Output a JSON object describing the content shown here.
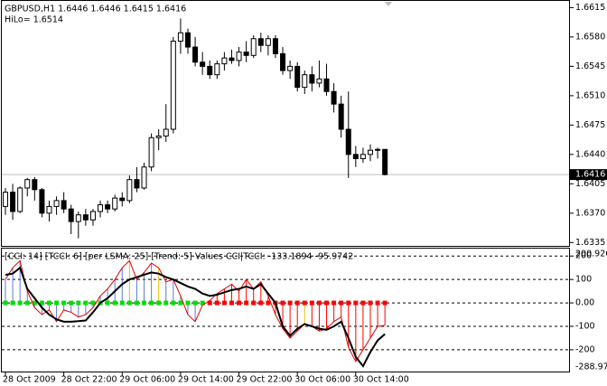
{
  "chart_data": [
    {
      "type": "candlestick",
      "title": "GBPUSD,H1  1.6446 1.6446 1.6415 1.6416",
      "annotation": "HiLo= 1.6514",
      "categories": [
        "28 Oct 2009",
        null,
        null,
        null,
        null,
        null,
        null,
        null,
        "28 Oct 22:00",
        null,
        null,
        null,
        null,
        null,
        null,
        null,
        "29 Oct 06:00",
        null,
        null,
        null,
        null,
        null,
        null,
        null,
        "29 Oct 14:00",
        null,
        null,
        null,
        null,
        null,
        null,
        null,
        "29 Oct 22:00",
        null,
        null,
        null,
        null,
        null,
        null,
        null,
        "30 Oct 06:00",
        null,
        null,
        null,
        null,
        null,
        null,
        null,
        "30 Oct 14:00",
        null,
        null,
        null,
        null
      ],
      "open": [
        1.6378,
        1.6395,
        1.6372,
        1.64,
        1.641,
        1.6398,
        1.637,
        1.6378,
        1.6385,
        1.6375,
        1.636,
        1.6368,
        1.6362,
        1.6372,
        1.638,
        1.6375,
        1.6388,
        1.6385,
        1.641,
        1.64,
        1.6425,
        1.646,
        1.6462,
        1.647,
        1.6575,
        1.6585,
        1.6568,
        1.655,
        1.6545,
        1.6535,
        1.6548,
        1.6555,
        1.6552,
        1.6562,
        1.6558,
        1.6578,
        1.657,
        1.6578,
        1.656,
        1.654,
        1.6545,
        1.652,
        1.6535,
        1.6525,
        1.653,
        1.6515,
        1.65,
        1.647,
        1.644,
        1.6435,
        1.644,
        1.6445,
        1.6446
      ],
      "high": [
        1.64,
        1.6405,
        1.6402,
        1.6412,
        1.6413,
        1.64,
        1.6385,
        1.639,
        1.6395,
        1.638,
        1.6372,
        1.6375,
        1.6375,
        1.6385,
        1.6385,
        1.6392,
        1.6395,
        1.6415,
        1.6425,
        1.643,
        1.6465,
        1.647,
        1.65,
        1.658,
        1.6602,
        1.659,
        1.658,
        1.6562,
        1.6552,
        1.6552,
        1.6562,
        1.6565,
        1.6568,
        1.6575,
        1.6582,
        1.6585,
        1.6582,
        1.6582,
        1.6568,
        1.6552,
        1.655,
        1.654,
        1.6545,
        1.6552,
        1.6548,
        1.6525,
        1.651,
        1.6515,
        1.645,
        1.6448,
        1.6452,
        1.6448,
        1.6446
      ],
      "low": [
        1.6368,
        1.6362,
        1.637,
        1.639,
        1.6385,
        1.6365,
        1.636,
        1.6368,
        1.637,
        1.6345,
        1.634,
        1.6355,
        1.6355,
        1.6365,
        1.637,
        1.6372,
        1.6378,
        1.6382,
        1.6395,
        1.6398,
        1.642,
        1.6445,
        1.6455,
        1.6465,
        1.656,
        1.656,
        1.6545,
        1.6535,
        1.653,
        1.653,
        1.654,
        1.6548,
        1.6545,
        1.655,
        1.6555,
        1.6562,
        1.6558,
        1.6555,
        1.6535,
        1.653,
        1.6515,
        1.6512,
        1.6515,
        1.652,
        1.651,
        1.649,
        1.646,
        1.6412,
        1.6425,
        1.643,
        1.6432,
        1.6435,
        1.6415
      ],
      "close": [
        1.6395,
        1.6372,
        1.64,
        1.641,
        1.6398,
        1.637,
        1.6378,
        1.6385,
        1.6375,
        1.636,
        1.6368,
        1.6362,
        1.6372,
        1.638,
        1.6375,
        1.6388,
        1.6385,
        1.641,
        1.64,
        1.6425,
        1.646,
        1.6462,
        1.647,
        1.6575,
        1.6585,
        1.6568,
        1.655,
        1.6545,
        1.6535,
        1.6548,
        1.6555,
        1.6552,
        1.6562,
        1.6558,
        1.6578,
        1.657,
        1.6578,
        1.656,
        1.654,
        1.6545,
        1.652,
        1.6535,
        1.6525,
        1.653,
        1.6515,
        1.65,
        1.647,
        1.644,
        1.6435,
        1.644,
        1.6445,
        1.6446,
        1.6416
      ],
      "up_color": "#ffffff",
      "down_color": "#000000",
      "ylim": [
        1.6331,
        1.6623
      ],
      "yticks": [
        1.6615,
        {
          "value": 1.658,
          "label": "1.6580"
        },
        1.6545,
        {
          "value": 1.651,
          "label": "1.6510"
        },
        1.6475,
        {
          "value": 1.644,
          "label": "1.6440"
        },
        1.6405,
        {
          "value": 1.637,
          "label": "1.6370"
        },
        1.6335
      ],
      "current_price": 1.6416
    },
    {
      "type": "indicator",
      "title": "[CCI: 14] [TCCI: 6] [per LSMA: 25] [Trend: 5] Values CCI|TCCI: -133.1894 -95.9742",
      "series": [
        {
          "color": "#e00000",
          "width": 1,
          "values": [
            100,
            150,
            180,
            50,
            -20,
            -50,
            -30,
            -80,
            -30,
            -40,
            -60,
            -50,
            -20,
            30,
            60,
            100,
            150,
            180,
            100,
            130,
            170,
            150,
            90,
            100,
            30,
            -50,
            -80,
            -10,
            10,
            40,
            60,
            80,
            50,
            100,
            60,
            90,
            30,
            -50,
            -110,
            -150,
            -120,
            -90,
            -100,
            -120,
            -110,
            -80,
            -60,
            -190,
            -250,
            -200,
            -150,
            -100,
            -96
          ]
        },
        {
          "color": "#000000",
          "width": 2,
          "values": [
            120,
            125,
            150,
            60,
            20,
            -20,
            -50,
            -70,
            -80,
            -80,
            -78,
            -75,
            -40,
            0,
            20,
            50,
            80,
            100,
            110,
            120,
            130,
            125,
            110,
            100,
            85,
            70,
            60,
            40,
            30,
            35,
            45,
            55,
            60,
            70,
            60,
            80,
            40,
            0,
            -100,
            -140,
            -110,
            -90,
            -100,
            -110,
            -115,
            -100,
            -80,
            -150,
            -230,
            -270,
            -210,
            -160,
            -133
          ]
        }
      ],
      "histogram_colors": [
        "#5b7bd5",
        "#5b7bd5",
        "#5b7bd5",
        "#5b7bd5",
        "#5b7bd5",
        "#5b7bd5",
        "#5b7bd5",
        "#5b7bd5",
        "#5b7bd5",
        "#5b7bd5",
        "#5b7bd5",
        "#5b7bd5",
        "#5b7bd5",
        "#5b7bd5",
        "#5b7bd5",
        "#5b7bd5",
        "#5b7bd5",
        "#e8c000",
        "#5b7bd5",
        "#5b7bd5",
        "#5b7bd5",
        "#e8c000",
        "#5b7bd5",
        "#5b7bd5",
        "#5b7bd5",
        "#5b7bd5",
        "#5b7bd5",
        "#5b7bd5",
        "#ff0000",
        "#ff0000",
        "#ff0000",
        "#ff0000",
        "#ff0000",
        "#ff0000",
        "#ff0000",
        "#ff0000",
        "#ff0000",
        "#ff0000",
        "#ff0000",
        "#ff0000",
        "#ff0000",
        "#e8c000",
        "#ff0000",
        "#ff0000",
        "#ff0000",
        "#ff0000",
        "#ff0000",
        "#ff0000",
        "#ff0000",
        "#ff0000",
        "#ff0000",
        "#ff0000",
        "#ff0000"
      ],
      "dots": {
        "values": [
          0,
          0,
          0,
          0,
          0,
          0,
          0,
          0,
          0,
          0,
          0,
          0,
          0,
          0,
          0,
          0,
          0,
          0,
          0,
          0,
          0,
          0,
          0,
          0,
          0,
          0,
          0,
          0,
          0,
          0,
          0,
          0,
          0,
          0,
          0,
          0,
          0,
          0,
          0,
          0,
          0,
          0,
          0,
          0,
          0,
          0,
          0,
          0,
          0,
          0,
          0,
          0,
          0
        ],
        "colors": [
          "#00e000",
          "#00e000",
          "#00e000",
          "#00e000",
          "#00e000",
          "#00e000",
          "#00e000",
          "#00e000",
          "#00e000",
          "#00e000",
          "#00e000",
          "#00e000",
          "#00e000",
          "#00e000",
          "#00e000",
          "#00e000",
          "#00e000",
          "#00e000",
          "#00e000",
          "#00e000",
          "#00e000",
          "#00e000",
          "#00e000",
          "#00e000",
          "#00e000",
          "#00e000",
          "#00e000",
          "#00e000",
          "#ff0000",
          "#ff0000",
          "#ff0000",
          "#ff0000",
          "#ff0000",
          "#ff0000",
          "#ff0000",
          "#ff0000",
          "#ff0000",
          "#ff0000",
          "#ff0000",
          "#ff0000",
          "#ff0000",
          "#ff0000",
          "#ff0000",
          "#ff0000",
          "#ff0000",
          "#ff0000",
          "#ff0000",
          "#ff0000",
          "#ff0000",
          "#ff0000",
          "#ff0000",
          "#ff0000",
          "#ff0000"
        ]
      },
      "ylim": [
        -288.975,
        200.9267
      ],
      "yticks": [
        200,
        100,
        {
          "value": 0,
          "label": "0.00"
        },
        -100,
        -200
      ]
    }
  ]
}
